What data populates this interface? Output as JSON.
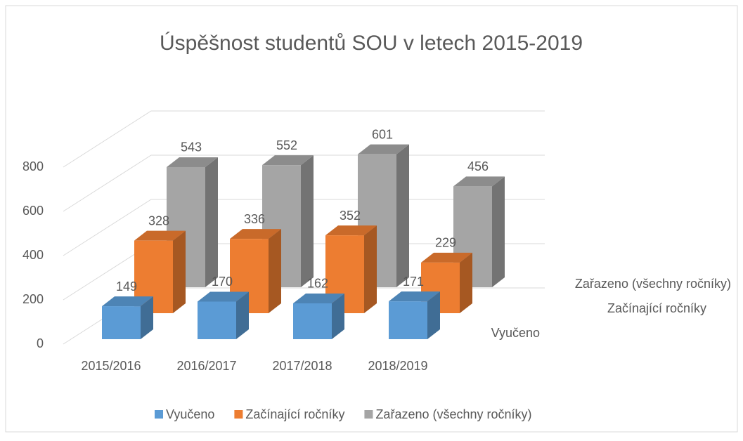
{
  "chart_data": {
    "type": "bar3d",
    "title": "Úspěšnost studentů SOU v letech 2015-2019",
    "categories": [
      "2015/2016",
      "2016/2017",
      "2017/2018",
      "2018/2019"
    ],
    "series": [
      {
        "name": "Vyučeno",
        "color": "#5b9bd5",
        "values": [
          149,
          170,
          162,
          171
        ]
      },
      {
        "name": "Začínající ročníky",
        "color": "#ed7d31",
        "values": [
          328,
          336,
          352,
          229
        ]
      },
      {
        "name": "Zařazeno (všechny ročníky)",
        "color": "#a5a5a5",
        "values": [
          543,
          552,
          601,
          456
        ]
      }
    ],
    "ylim": [
      0,
      800
    ],
    "yticks": [
      0,
      200,
      400,
      600,
      800
    ],
    "grid": true
  }
}
